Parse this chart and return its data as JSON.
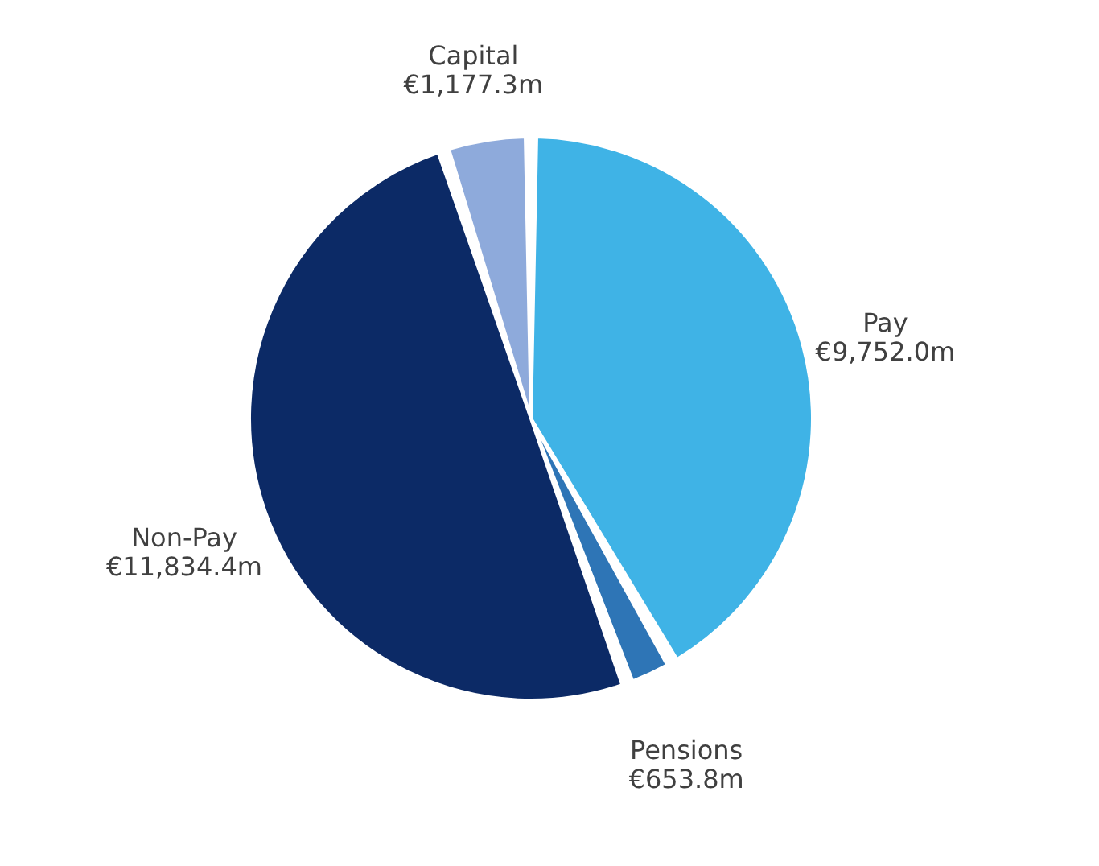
{
  "chart_data": {
    "type": "pie",
    "categories": [
      "Pay",
      "Pensions",
      "Non-Pay",
      "Capital"
    ],
    "values": [
      9752.0,
      653.8,
      11834.4,
      1177.3
    ],
    "value_labels": [
      "€9,752.0m",
      "€653.8m",
      "€11,834.4m",
      "€1,177.3m"
    ],
    "colors": [
      "#3fb3e6",
      "#2e75b6",
      "#0c2a66",
      "#8eaadb"
    ],
    "legend": false
  }
}
